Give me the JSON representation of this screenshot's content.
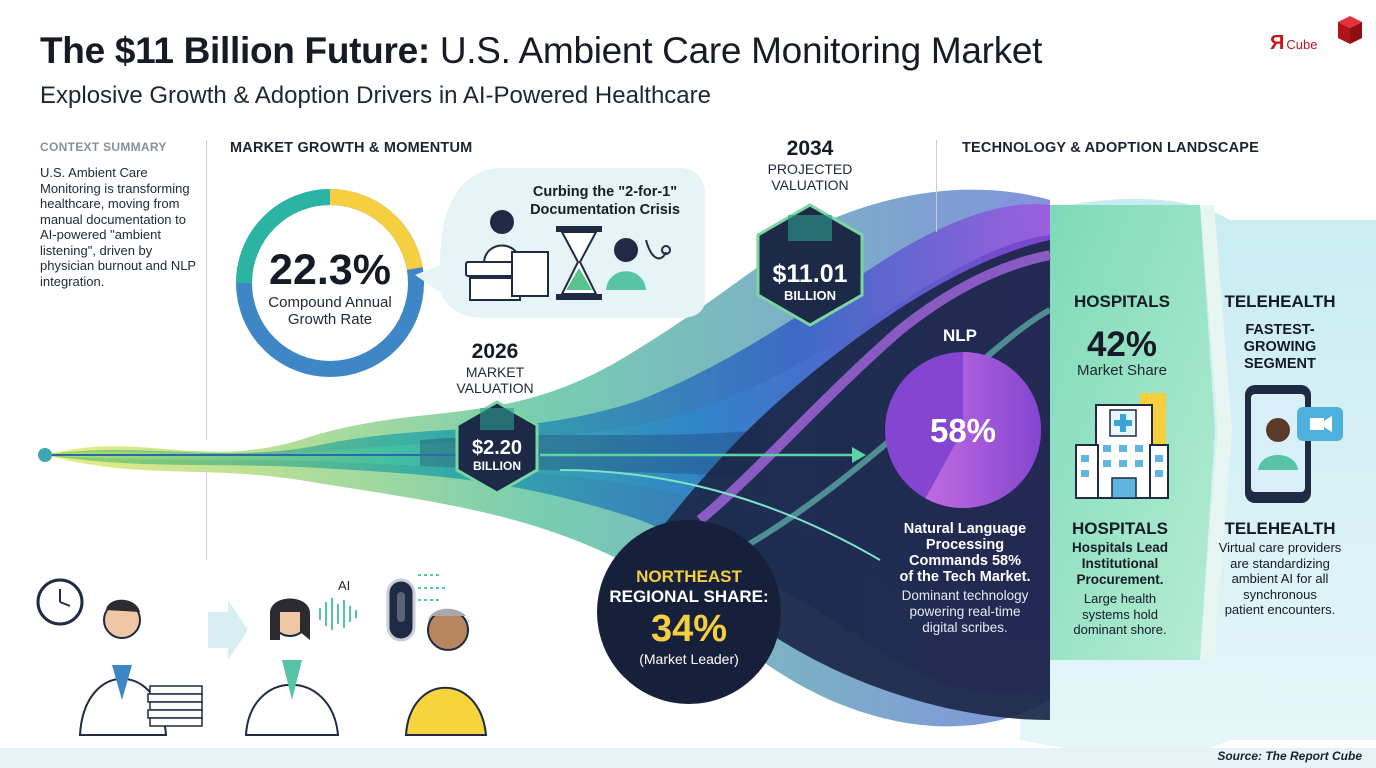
{
  "header": {
    "title_bold": "The $11 Billion Future:",
    "title_rest": "U.S. Ambient Care Monitoring Market",
    "subtitle": "Explosive Growth & Adoption Drivers in AI-Powered Healthcare",
    "logo_mark": "Я",
    "logo_word": "Cube"
  },
  "context": {
    "label": "CONTEXT SUMMARY",
    "text": "U.S. Ambient Care Monitoring is transforming healthcare, moving from manual documentation to AI-powered \"ambient listening\", driven by physician burnout and NLP integration."
  },
  "growth": {
    "label": "MARKET GROWTH & MOMENTUM",
    "cagr_value": "22.3%",
    "cagr_line1": "Compound Annual",
    "cagr_line2": "Growth Rate",
    "cagr_fraction": 0.223,
    "crisis_line1": "Curbing the \"2-for-1\"",
    "crisis_line2": "Documentation Crisis"
  },
  "valuation_2026": {
    "year": "2026",
    "line1": "MARKET",
    "line2": "VALUATION",
    "value": "$2.20",
    "unit": "BILLION"
  },
  "valuation_2034": {
    "year": "2034",
    "line1": "PROJECTED",
    "line2": "VALUATION",
    "value": "$11.01",
    "unit": "BILLION"
  },
  "northeast": {
    "line1": "NORTHEAST",
    "line2": "REGIONAL SHARE:",
    "value": "34%",
    "note": "(Market Leader)"
  },
  "technology": {
    "label": "TECHNOLOGY & ADOPTION LANDSCAPE",
    "nlp_label": "NLP",
    "nlp_value": "58%",
    "nlp_fraction": 0.58,
    "nlp_head_1": "Natural Language",
    "nlp_head_2": "Processing",
    "nlp_head_3": "Commands 58%",
    "nlp_head_4": "of the Tech Market.",
    "nlp_body_1": "Dominant technology",
    "nlp_body_2": "powering real-time",
    "nlp_body_3": "digital scribes."
  },
  "hospitals": {
    "top_label": "HOSPITALS",
    "value": "42%",
    "value_label": "Market Share",
    "share_fraction": 0.42,
    "title": "HOSPITALS",
    "head_1": "Hospitals Lead",
    "head_2": "Institutional",
    "head_3": "Procurement.",
    "body_1": "Large health",
    "body_2": "systems hold",
    "body_3": "dominant shore."
  },
  "telehealth": {
    "top_label": "TELEHEALTH",
    "sub_1": "FASTEST-",
    "sub_2": "GROWING",
    "sub_3": "SEGMENT",
    "title": "TELEHEALTH",
    "body_1": "Virtual care providers",
    "body_2": "are standardizing",
    "body_3": "ambient AI for all",
    "body_4": "synchronous",
    "body_5": "patient encounters."
  },
  "illustration": {
    "ai_label": "AI"
  },
  "footer": {
    "source": "Source: The Report Cube"
  },
  "colors": {
    "navy": "#1c2a48",
    "teal": "#2bb3a3",
    "green": "#8ccf5a",
    "yellow": "#f5cf3f",
    "blue": "#3e86c6",
    "purple": "#9b4fd6",
    "violet": "#6d39c7",
    "brand_red": "#c8151b"
  }
}
